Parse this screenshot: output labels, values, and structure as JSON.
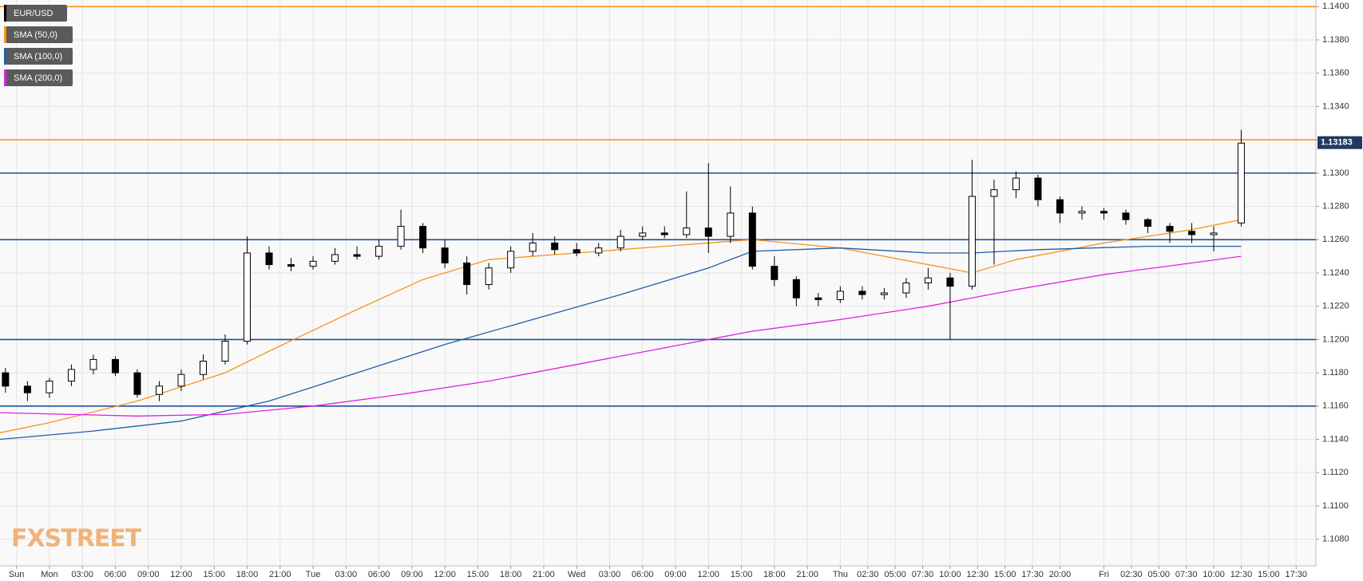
{
  "chart_data": {
    "type": "candlestick",
    "series": [
      {
        "name": "EUR/USD",
        "type": "candlestick",
        "color": "#000000",
        "up_color": "#ffffff",
        "down_color": "#000000",
        "x": [
          -4,
          -2,
          0,
          2,
          4,
          6,
          8,
          10,
          12,
          14,
          16,
          18,
          20,
          22,
          24,
          26,
          28,
          30,
          32,
          34,
          36,
          38,
          40,
          42,
          44,
          46,
          48,
          50,
          52,
          54,
          56,
          58,
          60,
          62,
          64,
          66,
          68,
          70,
          72,
          74,
          76,
          78,
          80,
          82,
          84,
          86,
          88,
          90,
          92,
          94,
          96,
          98,
          100,
          102,
          104,
          106,
          108.5
        ],
        "open": [
          1.118,
          1.1172,
          1.1168,
          1.1175,
          1.1182,
          1.1188,
          1.118,
          1.1167,
          1.1172,
          1.1179,
          1.1187,
          1.1199,
          1.1252,
          1.1245,
          1.1244,
          1.1247,
          1.1251,
          1.125,
          1.1256,
          1.1268,
          1.1255,
          1.1246,
          1.1233,
          1.1243,
          1.1253,
          1.1258,
          1.1254,
          1.1252,
          1.1255,
          1.1262,
          1.1264,
          1.1263,
          1.1267,
          1.1262,
          1.1276,
          1.1244,
          1.1236,
          1.1225,
          1.1224,
          1.1229,
          1.1227,
          1.1228,
          1.1234,
          1.1237,
          1.1232,
          1.1286,
          1.129,
          1.1297,
          1.1284,
          1.1276,
          1.1277,
          1.1276,
          1.1272,
          1.1268,
          1.1265,
          1.1263,
          1.127
        ],
        "high": [
          1.1183,
          1.1175,
          1.1177,
          1.1185,
          1.1191,
          1.119,
          1.1182,
          1.1175,
          1.1182,
          1.1191,
          1.1203,
          1.1262,
          1.1256,
          1.1249,
          1.125,
          1.1255,
          1.1256,
          1.126,
          1.1278,
          1.127,
          1.126,
          1.125,
          1.1246,
          1.1256,
          1.1264,
          1.1262,
          1.1258,
          1.1258,
          1.1266,
          1.1268,
          1.1268,
          1.1289,
          1.1306,
          1.1292,
          1.128,
          1.125,
          1.1238,
          1.1228,
          1.1232,
          1.1232,
          1.1231,
          1.1237,
          1.1243,
          1.124,
          1.1308,
          1.1296,
          1.1301,
          1.1299,
          1.1286,
          1.128,
          1.1279,
          1.1278,
          1.1273,
          1.127,
          1.127,
          1.1268,
          1.1326
        ],
        "low": [
          1.1168,
          1.1163,
          1.1165,
          1.1172,
          1.1179,
          1.1178,
          1.1165,
          1.1163,
          1.1169,
          1.1176,
          1.1185,
          1.1197,
          1.1242,
          1.1241,
          1.1242,
          1.1245,
          1.1248,
          1.1248,
          1.1254,
          1.1252,
          1.1243,
          1.1227,
          1.123,
          1.124,
          1.125,
          1.1251,
          1.125,
          1.125,
          1.1253,
          1.126,
          1.1261,
          1.1261,
          1.1252,
          1.1258,
          1.1242,
          1.1232,
          1.122,
          1.122,
          1.1222,
          1.1224,
          1.1224,
          1.1225,
          1.123,
          1.12,
          1.123,
          1.1245,
          1.1285,
          1.128,
          1.127,
          1.1272,
          1.1272,
          1.1269,
          1.1264,
          1.1258,
          1.1258,
          1.1253,
          1.1268
        ],
        "close": [
          1.1172,
          1.1168,
          1.1175,
          1.1182,
          1.1188,
          1.118,
          1.1167,
          1.1172,
          1.1179,
          1.1187,
          1.1199,
          1.1252,
          1.1245,
          1.1244,
          1.1247,
          1.1251,
          1.125,
          1.1256,
          1.1268,
          1.1255,
          1.1246,
          1.1233,
          1.1243,
          1.1253,
          1.1258,
          1.1254,
          1.1252,
          1.1255,
          1.1262,
          1.1264,
          1.1263,
          1.1267,
          1.1262,
          1.1276,
          1.1244,
          1.1236,
          1.1225,
          1.1224,
          1.1229,
          1.1227,
          1.1228,
          1.1234,
          1.1237,
          1.1232,
          1.1286,
          1.129,
          1.1297,
          1.1284,
          1.1276,
          1.1277,
          1.1276,
          1.1272,
          1.1268,
          1.1265,
          1.1263,
          1.1264,
          1.1318
        ]
      },
      {
        "name": "SMA (50,0)",
        "type": "line",
        "color": "#f7941d",
        "x": [
          -4.5,
          0,
          8,
          16,
          20,
          28,
          34,
          40,
          48,
          56,
          60,
          64,
          72,
          80,
          84,
          88,
          96,
          104,
          108.5
        ],
        "values": [
          1.1144,
          1.115,
          1.1163,
          1.118,
          1.1193,
          1.1218,
          1.1236,
          1.1248,
          1.1252,
          1.1256,
          1.1258,
          1.126,
          1.1255,
          1.1245,
          1.124,
          1.1248,
          1.1258,
          1.1266,
          1.1272
        ]
      },
      {
        "name": "SMA (100,0)",
        "type": "line",
        "color": "#1f5fa8",
        "x": [
          -4.5,
          4,
          12,
          20,
          28,
          36,
          44,
          52,
          60,
          64,
          72,
          80,
          84,
          90,
          100,
          108.5
        ],
        "values": [
          1.114,
          1.1145,
          1.1151,
          1.1163,
          1.118,
          1.1197,
          1.1212,
          1.1227,
          1.1243,
          1.1253,
          1.1255,
          1.1252,
          1.1252,
          1.1254,
          1.1256,
          1.1256
        ]
      },
      {
        "name": "SMA (200,0)",
        "type": "line",
        "color": "#e020e0",
        "x": [
          -4.5,
          8,
          16,
          24,
          32,
          40,
          48,
          56,
          64,
          72,
          80,
          88,
          96,
          104,
          108.5
        ],
        "values": [
          1.1156,
          1.1154,
          1.1155,
          1.116,
          1.1167,
          1.1175,
          1.1185,
          1.1195,
          1.1205,
          1.1212,
          1.122,
          1.123,
          1.1239,
          1.1246,
          1.125
        ]
      }
    ],
    "levels": [
      {
        "value": 1.14,
        "color": "#f7941d"
      },
      {
        "value": 1.132,
        "color": "#f7941d"
      },
      {
        "value": 1.13,
        "color": "#1f4e9a"
      },
      {
        "value": 1.126,
        "color": "#1f4e9a"
      },
      {
        "value": 1.12,
        "color": "#1f4e9a"
      },
      {
        "value": 1.116,
        "color": "#1f4e9a"
      }
    ],
    "last_price": 1.13183,
    "xlim": [
      -4.5,
      115.3
    ],
    "xticks": [
      {
        "value": -3,
        "label": "Sun"
      },
      {
        "value": 0,
        "label": "Mon"
      },
      {
        "value": 3,
        "label": "03:00"
      },
      {
        "value": 6,
        "label": "06:00"
      },
      {
        "value": 9,
        "label": "09:00"
      },
      {
        "value": 12,
        "label": "12:00"
      },
      {
        "value": 15,
        "label": "15:00"
      },
      {
        "value": 18,
        "label": "18:00"
      },
      {
        "value": 21,
        "label": "21:00"
      },
      {
        "value": 24,
        "label": "Tue"
      },
      {
        "value": 27,
        "label": "03:00"
      },
      {
        "value": 30,
        "label": "06:00"
      },
      {
        "value": 33,
        "label": "09:00"
      },
      {
        "value": 36,
        "label": "12:00"
      },
      {
        "value": 39,
        "label": "15:00"
      },
      {
        "value": 42,
        "label": "18:00"
      },
      {
        "value": 45,
        "label": "21:00"
      },
      {
        "value": 48,
        "label": "Wed"
      },
      {
        "value": 51,
        "label": "03:00"
      },
      {
        "value": 54,
        "label": "06:00"
      },
      {
        "value": 57,
        "label": "09:00"
      },
      {
        "value": 60,
        "label": "12:00"
      },
      {
        "value": 63,
        "label": "15:00"
      },
      {
        "value": 66,
        "label": "18:00"
      },
      {
        "value": 69,
        "label": "21:00"
      },
      {
        "value": 72,
        "label": "Thu"
      },
      {
        "value": 74.5,
        "label": "02:30"
      },
      {
        "value": 77,
        "label": "05:00"
      },
      {
        "value": 79.5,
        "label": "07:30"
      },
      {
        "value": 82,
        "label": "10:00"
      },
      {
        "value": 84.5,
        "label": "12:30"
      },
      {
        "value": 87,
        "label": "15:00"
      },
      {
        "value": 89.5,
        "label": "17:30"
      },
      {
        "value": 92,
        "label": "20:00"
      },
      {
        "value": 96,
        "label": "Fri"
      },
      {
        "value": 98.5,
        "label": "02:30"
      },
      {
        "value": 101,
        "label": "05:00"
      },
      {
        "value": 103.5,
        "label": "07:30"
      },
      {
        "value": 106,
        "label": "10:00"
      },
      {
        "value": 108.5,
        "label": "12:30"
      },
      {
        "value": 111,
        "label": "15:00"
      },
      {
        "value": 113.5,
        "label": "17:30"
      }
    ],
    "ylim": [
      1.1064,
      1.1404
    ],
    "yticks": [
      {
        "value": 1.108,
        "label": "1.1080"
      },
      {
        "value": 1.11,
        "label": "1.1100"
      },
      {
        "value": 1.112,
        "label": "1.1120"
      },
      {
        "value": 1.114,
        "label": "1.1140"
      },
      {
        "value": 1.116,
        "label": "1.1160"
      },
      {
        "value": 1.118,
        "label": "1.1180"
      },
      {
        "value": 1.12,
        "label": "1.1200"
      },
      {
        "value": 1.122,
        "label": "1.1220"
      },
      {
        "value": 1.124,
        "label": "1.1240"
      },
      {
        "value": 1.126,
        "label": "1.1260"
      },
      {
        "value": 1.128,
        "label": "1.1280"
      },
      {
        "value": 1.13,
        "label": "1.1300"
      },
      {
        "value": 1.132,
        "label": "1.1320"
      },
      {
        "value": 1.134,
        "label": "1.1340"
      },
      {
        "value": 1.136,
        "label": "1.1360"
      },
      {
        "value": 1.138,
        "label": "1.1380"
      },
      {
        "value": 1.14,
        "label": "1.1400"
      }
    ],
    "grid": true,
    "logo": "FXSTREET"
  }
}
